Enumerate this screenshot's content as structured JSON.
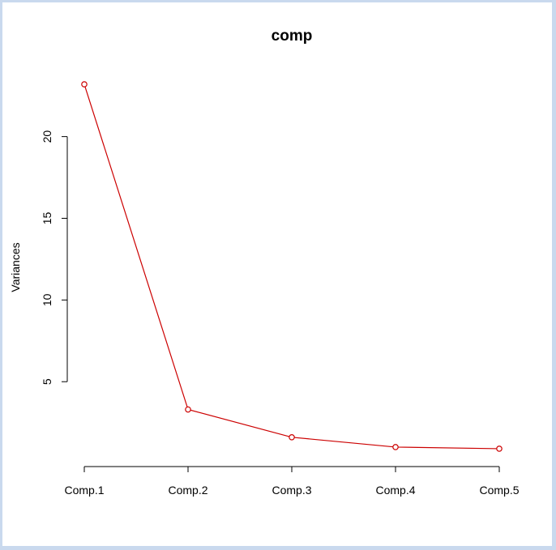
{
  "chart_data": {
    "type": "line",
    "title": "comp",
    "xlabel": "",
    "ylabel": "Variances",
    "categories": [
      "Comp.1",
      "Comp.2",
      "Comp.3",
      "Comp.4",
      "Comp.5"
    ],
    "values": [
      23.2,
      3.3,
      1.6,
      1.0,
      0.9
    ],
    "yticks": [
      "5",
      "10",
      "15",
      "20"
    ],
    "ylim": [
      0.5,
      23.6
    ],
    "grid": false,
    "legend": "none",
    "line_color": "#cc0000",
    "marker": "open-circle"
  }
}
